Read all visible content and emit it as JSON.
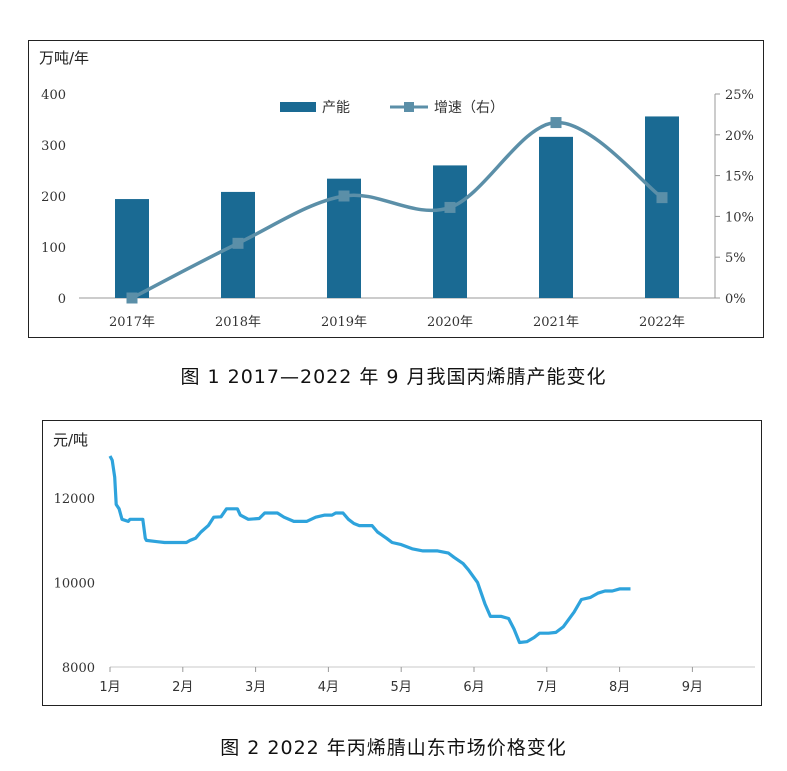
{
  "chart_data": [
    {
      "type": "bar",
      "y_unit_label": "万吨/年",
      "categories": [
        "2017年",
        "2018年",
        "2019年",
        "2020年",
        "2021年",
        "2022年"
      ],
      "ylim": [
        0,
        400
      ],
      "yticks": [
        "0",
        "100",
        "200",
        "300",
        "400"
      ],
      "y2lim": [
        0,
        25
      ],
      "y2ticks": [
        "0%",
        "5%",
        "10%",
        "15%",
        "20%",
        "25%"
      ],
      "series": [
        {
          "name": "产能",
          "type": "bar",
          "axis": "left",
          "color": "#1a6a93",
          "values": [
            194,
            208,
            234,
            260,
            316,
            356
          ]
        },
        {
          "name": "增速（右）",
          "type": "line",
          "axis": "right",
          "color": "#5b8fa8",
          "values": [
            0,
            6.7,
            12.5,
            11.1,
            21.5,
            12.3
          ]
        }
      ],
      "legend": [
        "产能",
        "增速（右）"
      ],
      "legend_position": "top-center",
      "caption": "图 1  2017—2022 年 9 月我国丙烯腈产能变化"
    },
    {
      "type": "line",
      "y_unit_label": "元/吨",
      "ylim": [
        8000,
        13000
      ],
      "yticks": [
        "8000",
        "10000",
        "12000"
      ],
      "xticks": [
        "1月",
        "2月",
        "3月",
        "4月",
        "5月",
        "6月",
        "7月",
        "8月",
        "9月"
      ],
      "series": [
        {
          "name": "",
          "color": "#2ea3dc",
          "points": [
            [
              0.0,
              13000
            ],
            [
              0.06,
              12900
            ],
            [
              0.13,
              12500
            ],
            [
              0.17,
              11850
            ],
            [
              0.25,
              11750
            ],
            [
              0.33,
              11500
            ],
            [
              0.5,
              11450
            ],
            [
              0.55,
              11500
            ],
            [
              0.9,
              11500
            ],
            [
              0.97,
              11050
            ],
            [
              1.0,
              11000
            ],
            [
              1.3,
              10970
            ],
            [
              1.5,
              10950
            ],
            [
              1.8,
              10950
            ],
            [
              2.1,
              10950
            ],
            [
              2.2,
              11000
            ],
            [
              2.35,
              11050
            ],
            [
              2.5,
              11200
            ],
            [
              2.7,
              11350
            ],
            [
              2.85,
              11550
            ],
            [
              3.05,
              11560
            ],
            [
              3.2,
              11750
            ],
            [
              3.5,
              11750
            ],
            [
              3.58,
              11600
            ],
            [
              3.8,
              11500
            ],
            [
              4.1,
              11520
            ],
            [
              4.25,
              11650
            ],
            [
              4.6,
              11650
            ],
            [
              4.78,
              11550
            ],
            [
              5.05,
              11450
            ],
            [
              5.4,
              11450
            ],
            [
              5.65,
              11550
            ],
            [
              5.9,
              11600
            ],
            [
              6.1,
              11600
            ],
            [
              6.2,
              11650
            ],
            [
              6.4,
              11650
            ],
            [
              6.55,
              11500
            ],
            [
              6.7,
              11400
            ],
            [
              6.85,
              11350
            ],
            [
              7.2,
              11350
            ],
            [
              7.35,
              11200
            ],
            [
              7.6,
              11050
            ],
            [
              7.75,
              10950
            ],
            [
              8.0,
              10900
            ],
            [
              8.3,
              10800
            ],
            [
              8.6,
              10750
            ],
            [
              9.0,
              10750
            ],
            [
              9.3,
              10700
            ],
            [
              9.45,
              10600
            ],
            [
              9.7,
              10450
            ],
            [
              9.85,
              10300
            ],
            [
              10.1,
              10000
            ],
            [
              10.3,
              9500
            ],
            [
              10.45,
              9200
            ],
            [
              10.75,
              9200
            ],
            [
              10.95,
              9150
            ],
            [
              11.1,
              8900
            ],
            [
              11.25,
              8580
            ],
            [
              11.45,
              8600
            ],
            [
              11.65,
              8700
            ],
            [
              11.8,
              8800
            ],
            [
              12.05,
              8800
            ],
            [
              12.25,
              8820
            ],
            [
              12.45,
              8950
            ],
            [
              12.75,
              9300
            ],
            [
              12.95,
              9600
            ],
            [
              13.2,
              9650
            ],
            [
              13.4,
              9750
            ],
            [
              13.6,
              9800
            ],
            [
              13.8,
              9800
            ],
            [
              14.0,
              9850
            ],
            [
              14.15,
              9850
            ],
            [
              14.3,
              9850
            ]
          ]
        }
      ],
      "caption": "图 2  2022 年丙烯腈山东市场价格变化"
    }
  ]
}
